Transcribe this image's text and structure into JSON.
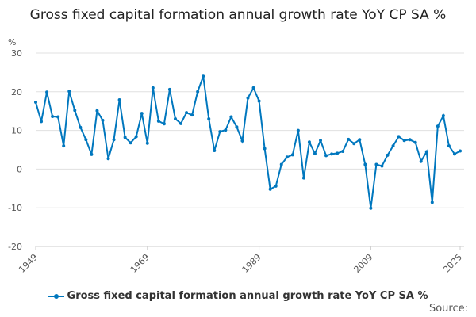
{
  "chart_data": {
    "type": "line",
    "title": "Gross fixed capital formation annual growth rate YoY CP SA %",
    "ylabel": "%",
    "xlabel": "",
    "ylim": [
      -20,
      30
    ],
    "yticks": [
      30,
      20,
      10,
      0,
      -10,
      -20
    ],
    "xticks": [
      1949,
      1969,
      1989,
      2009,
      2025
    ],
    "grid": true,
    "legend_position": "bottom",
    "color": "#0077be",
    "x_start": 1949,
    "series": [
      {
        "name": "Gross fixed capital formation annual growth rate YoY CP SA %",
        "x": [
          1949,
          1950,
          1951,
          1952,
          1953,
          1954,
          1955,
          1956,
          1957,
          1958,
          1959,
          1960,
          1961,
          1962,
          1963,
          1964,
          1965,
          1966,
          1967,
          1968,
          1969,
          1970,
          1971,
          1972,
          1973,
          1974,
          1975,
          1976,
          1977,
          1978,
          1979,
          1980,
          1981,
          1982,
          1983,
          1984,
          1985,
          1986,
          1987,
          1988,
          1989,
          1990,
          1991,
          1992,
          1993,
          1994,
          1995,
          1996,
          1997,
          1998,
          1999,
          2000,
          2001,
          2002,
          2003,
          2004,
          2005,
          2006,
          2007,
          2008,
          2009,
          2010,
          2011,
          2012,
          2013,
          2014,
          2015,
          2016,
          2017,
          2018,
          2019,
          2020,
          2021,
          2022,
          2023,
          2024,
          2025
        ],
        "values": [
          17.3,
          12.3,
          19.9,
          13.6,
          13.5,
          6.0,
          20.1,
          15.2,
          10.8,
          7.6,
          3.8,
          15.1,
          12.6,
          2.7,
          7.6,
          17.9,
          8.2,
          6.8,
          8.4,
          14.4,
          6.7,
          21.0,
          12.4,
          11.7,
          20.6,
          13.0,
          11.8,
          14.6,
          14.0,
          20.0,
          24.0,
          13.0,
          4.8,
          9.7,
          10.1,
          13.5,
          10.9,
          7.3,
          18.4,
          21.0,
          17.6,
          5.3,
          -5.2,
          -4.4,
          1.2,
          3.1,
          3.7,
          10.0,
          -2.3,
          7.0,
          4.0,
          7.4,
          3.5,
          3.9,
          4.1,
          4.6,
          7.7,
          6.6,
          7.6,
          1.2,
          -10.1,
          1.2,
          0.8,
          3.6,
          6.0,
          8.4,
          7.4,
          7.6,
          6.9,
          2.0,
          4.5,
          -8.6,
          11.1,
          13.8,
          6.0,
          3.9,
          4.7
        ]
      }
    ]
  },
  "source_label": "Source:"
}
